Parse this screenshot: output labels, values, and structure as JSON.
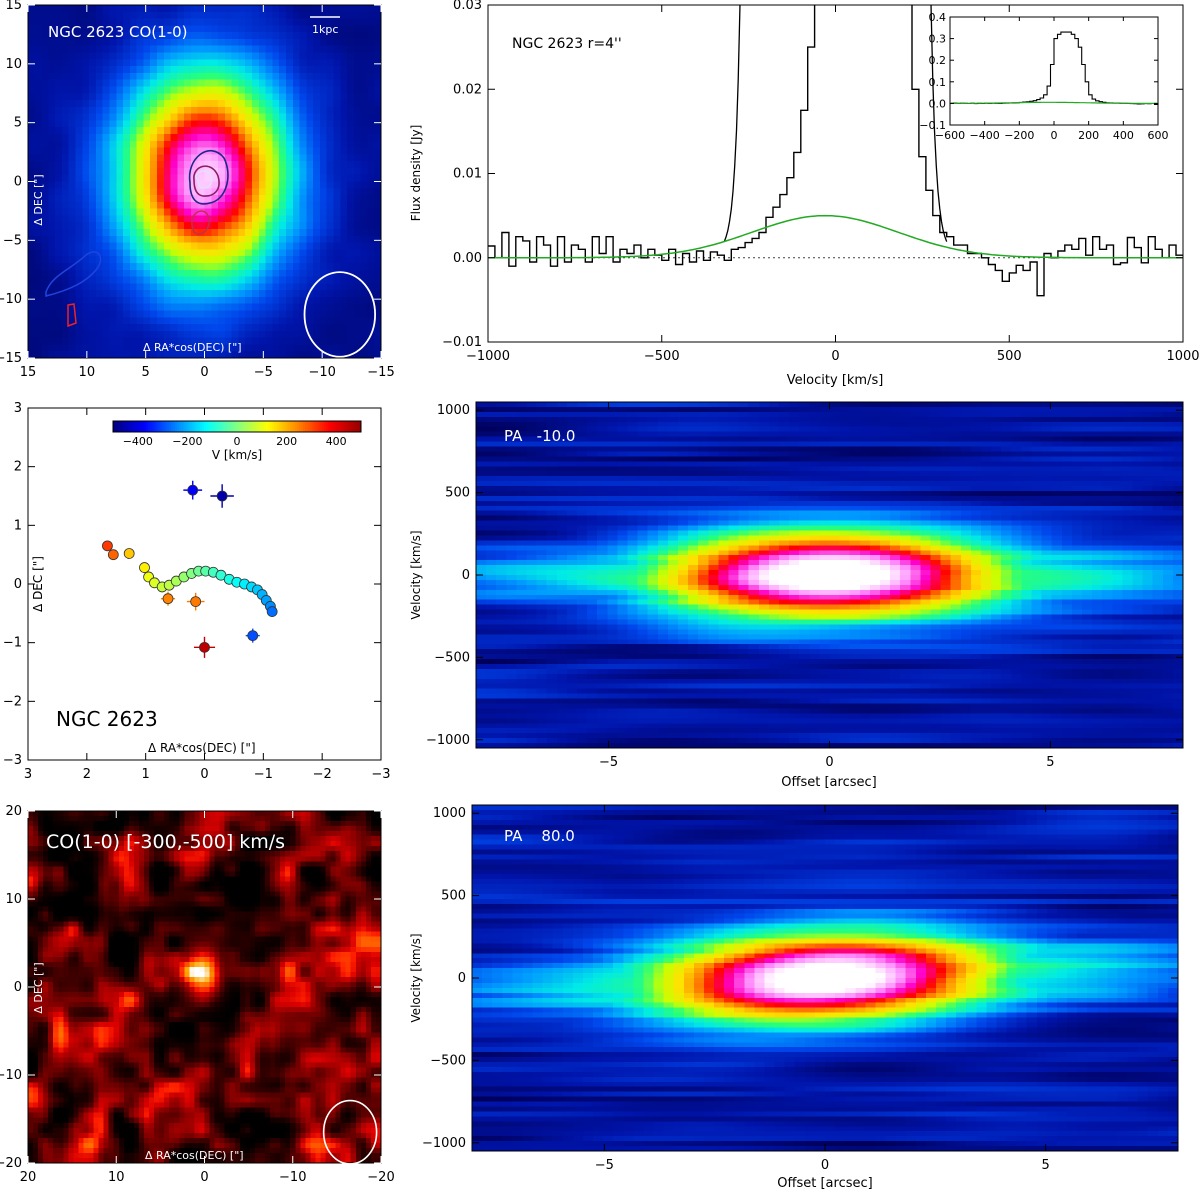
{
  "chart_data": [
    {
      "id": "co_map",
      "type": "heatmap",
      "title": "NGC 2623 CO(1-0)",
      "scalebar": "1kpc",
      "xlabel": "Δ RA*cos(DEC) [\"]",
      "ylabel": "Δ DEC [\"]",
      "xlim": [
        15,
        -15
      ],
      "ylim": [
        -15,
        15
      ],
      "xticks": [
        15,
        10,
        5,
        0,
        -5,
        -10,
        -15
      ],
      "yticks": [
        -15,
        -10,
        -5,
        0,
        5,
        10,
        15
      ],
      "source": {
        "x": 0,
        "y": 0.5,
        "sx": 3.6,
        "sy": 4.6,
        "peak": 1.0
      },
      "beam": {
        "x": -11.5,
        "y": -11.3,
        "major": 3.6,
        "minor": 3.0
      }
    },
    {
      "id": "spectrum",
      "type": "line",
      "label": "NGC 2623 r=4''",
      "xlabel": "Velocity [km/s]",
      "ylabel": "Flux density [Jy]",
      "xlim": [
        -1000,
        1000
      ],
      "ylim": [
        -0.01,
        0.03
      ],
      "xticks": [
        -1000,
        -500,
        0,
        500,
        1000
      ],
      "yticks": [
        -0.01,
        0.0,
        0.01,
        0.02,
        0.03
      ],
      "channel_width": 20,
      "residual_flux": [
        0.0014,
        0.0,
        0.003,
        -0.001,
        0.0025,
        0.002,
        -0.0005,
        0.0025,
        0.0015,
        -0.001,
        0.0025,
        -0.0005,
        0.0015,
        0.001,
        -0.0005,
        0.0025,
        0.0005,
        0.0025,
        -0.0005,
        0.001,
        0.0005,
        0.0015,
        0.0,
        0.001,
        0.0003,
        -0.0003,
        0.001,
        -0.0008,
        0.0005,
        -0.0005,
        0.0008,
        -0.0003,
        0.0007,
        0.0003,
        -0.0003,
        0.001,
        0.0012,
        0.0018,
        0.0023,
        0.003,
        0.0048,
        0.006,
        0.0075,
        0.0095,
        0.0125,
        0.0175,
        0.025,
        0.04,
        0.08,
        0.18,
        0.3,
        0.32,
        0.33,
        0.33,
        0.33,
        0.32,
        0.3,
        0.26,
        0.18,
        0.1,
        0.04,
        0.02,
        0.012,
        0.008,
        0.005,
        0.003,
        0.0025,
        0.0015,
        0.0015,
        0.0005,
        0.0005,
        0.0,
        -0.0008,
        -0.0015,
        -0.0028,
        -0.0018,
        -0.0009,
        -0.0015,
        -0.0005,
        -0.0045,
        0.0005,
        0.0,
        0.0008,
        0.0015,
        0.001,
        0.0023,
        0.0003,
        0.0025,
        0.001,
        0.0015,
        -0.0008,
        -0.0006,
        0.0024,
        0.0012,
        -0.0006,
        0.0025,
        0.001,
        0.0,
        0.0015,
        0.0003
      ],
      "gaussian": {
        "amplitude": 0.005,
        "center": -30,
        "sigma": 210,
        "color": "#22aa22"
      },
      "inset": {
        "xlim": [
          -600,
          600
        ],
        "ylim": [
          -0.1,
          0.4
        ],
        "xticks": [
          -600,
          -400,
          -200,
          0,
          200,
          400,
          600
        ],
        "yticks": [
          -0.1,
          0.0,
          0.1,
          0.2,
          0.3,
          0.4
        ]
      }
    },
    {
      "id": "positions",
      "type": "scatter",
      "label": "NGC 2623",
      "xlabel": "Δ RA*cos(DEC) [\"]",
      "ylabel": "Δ DEC [\"]",
      "xlim": [
        3,
        -3
      ],
      "ylim": [
        -3,
        3
      ],
      "xticks": [
        3,
        2,
        1,
        0,
        -1,
        -2,
        -3
      ],
      "yticks": [
        -3,
        -2,
        -1,
        0,
        1,
        2,
        3
      ],
      "colorbar": {
        "label": "V [km/s]",
        "range": [
          -500,
          500
        ],
        "ticks": [
          -400,
          -200,
          0,
          200,
          400
        ]
      },
      "points": [
        {
          "x": 1.65,
          "y": 0.65,
          "v": 320
        },
        {
          "x": 1.55,
          "y": 0.5,
          "v": 280
        },
        {
          "x": 1.28,
          "y": 0.52,
          "v": 180
        },
        {
          "x": 1.02,
          "y": 0.28,
          "v": 140
        },
        {
          "x": 0.95,
          "y": 0.12,
          "v": 110
        },
        {
          "x": 0.85,
          "y": 0.02,
          "v": 90
        },
        {
          "x": 0.72,
          "y": -0.05,
          "v": 70
        },
        {
          "x": 0.6,
          "y": -0.02,
          "v": 60
        },
        {
          "x": 0.48,
          "y": 0.05,
          "v": 40
        },
        {
          "x": 0.35,
          "y": 0.12,
          "v": 20
        },
        {
          "x": 0.22,
          "y": 0.18,
          "v": 0
        },
        {
          "x": 0.1,
          "y": 0.22,
          "v": -20
        },
        {
          "x": -0.02,
          "y": 0.22,
          "v": -40
        },
        {
          "x": -0.15,
          "y": 0.2,
          "v": -60
        },
        {
          "x": -0.28,
          "y": 0.15,
          "v": -80
        },
        {
          "x": -0.42,
          "y": 0.08,
          "v": -100
        },
        {
          "x": -0.55,
          "y": 0.03,
          "v": -120
        },
        {
          "x": -0.68,
          "y": 0.0,
          "v": -140
        },
        {
          "x": -0.8,
          "y": -0.05,
          "v": -160
        },
        {
          "x": -0.9,
          "y": -0.1,
          "v": -180
        },
        {
          "x": -0.98,
          "y": -0.18,
          "v": -200
        },
        {
          "x": -1.05,
          "y": -0.28,
          "v": -220
        },
        {
          "x": -1.12,
          "y": -0.38,
          "v": -240
        },
        {
          "x": -1.15,
          "y": -0.47,
          "v": -270
        },
        {
          "x": 0.62,
          "y": -0.25,
          "v": 250,
          "err": 0.12
        },
        {
          "x": 0.15,
          "y": -0.3,
          "v": 260,
          "err": 0.15
        },
        {
          "x": 0.0,
          "y": -1.08,
          "v": 450,
          "err": 0.18
        },
        {
          "x": -0.82,
          "y": -0.88,
          "v": -300,
          "err": 0.12
        },
        {
          "x": 0.2,
          "y": 1.6,
          "v": -380,
          "err": 0.16
        },
        {
          "x": -0.3,
          "y": 1.5,
          "v": -460,
          "err": 0.2
        }
      ]
    },
    {
      "id": "pv_pa_m10",
      "type": "heatmap",
      "label": "PA   -10.0",
      "xlabel": "Offset [arcsec]",
      "ylabel": "Velocity [km/s]",
      "xlim": [
        -8,
        8
      ],
      "ylim": [
        -1050,
        1050
      ],
      "xticks": [
        -5,
        0,
        5
      ],
      "yticks": [
        -1000,
        -500,
        0,
        500,
        1000
      ],
      "pa": -10.0
    },
    {
      "id": "co_highvel",
      "type": "heatmap",
      "title": "CO(1-0) [-300,-500] km/s",
      "xlabel": "Δ RA*cos(DEC) [\"]",
      "ylabel": "Δ DEC [\"]",
      "xlim": [
        20,
        -20
      ],
      "ylim": [
        -20,
        20
      ],
      "xticks": [
        20,
        10,
        0,
        -10,
        -20
      ],
      "yticks": [
        -20,
        -10,
        0,
        10,
        20
      ],
      "beam": {
        "x": -16.5,
        "y": -16.5,
        "major": 3.6,
        "minor": 3.0
      }
    },
    {
      "id": "pv_pa_80",
      "type": "heatmap",
      "label": "PA    80.0",
      "xlabel": "Offset [arcsec]",
      "ylabel": "Velocity [km/s]",
      "xlim": [
        -8,
        8
      ],
      "ylim": [
        -1050,
        1050
      ],
      "xticks": [
        -5,
        0,
        5
      ],
      "yticks": [
        -1000,
        -500,
        0,
        500,
        1000
      ],
      "pa": 80.0
    }
  ]
}
